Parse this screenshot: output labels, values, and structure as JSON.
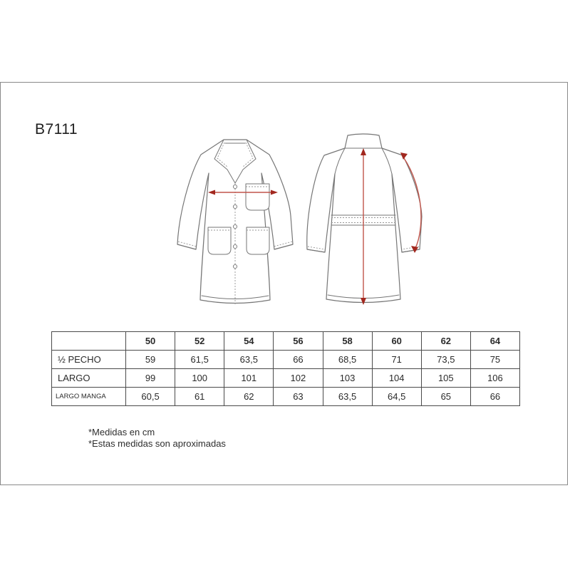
{
  "page": {
    "title": "B7111"
  },
  "diagram": {
    "views": [
      "front-view",
      "back-view"
    ],
    "measurement_arrows": [
      "chest-width-arrow",
      "back-length-arrow",
      "sleeve-length-arrow"
    ],
    "colors": {
      "accent_red_shaft": "#c0554b",
      "accent_red_head": "#a2281f",
      "line_gray": "#767676",
      "stitch_gray": "#949494"
    }
  },
  "size_table": {
    "corner_label": "",
    "columns": [
      "50",
      "52",
      "54",
      "56",
      "58",
      "60",
      "62",
      "64"
    ],
    "rows": [
      {
        "label": "½ PECHO",
        "values": [
          "59",
          "61,5",
          "63,5",
          "66",
          "68,5",
          "71",
          "73,5",
          "75"
        ]
      },
      {
        "label": "LARGO",
        "values": [
          "99",
          "100",
          "101",
          "102",
          "103",
          "104",
          "105",
          "106"
        ]
      },
      {
        "label": "LARGO MANGA",
        "values": [
          "60,5",
          "61",
          "62",
          "63",
          "63,5",
          "64,5",
          "65",
          "66"
        ]
      }
    ]
  },
  "notes": {
    "line1": "*Medidas en cm",
    "line2": "*Estas medidas son aproximadas"
  },
  "colors": {
    "frame_border": "#8a8a8a",
    "table_border": "#4a4a4a"
  }
}
